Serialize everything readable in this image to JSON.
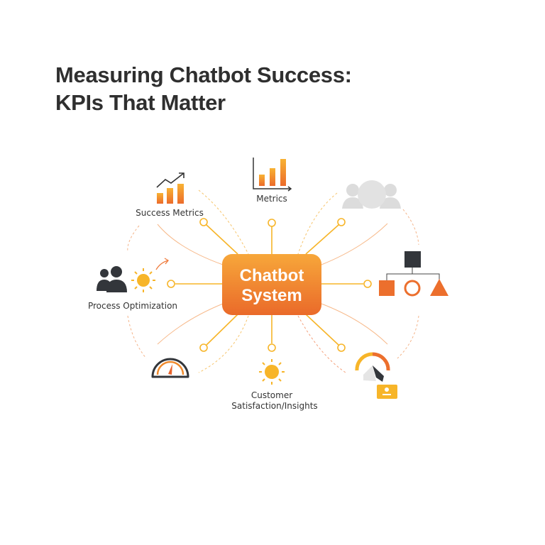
{
  "title": {
    "line1": "Measuring Chatbot Success:",
    "line2": "KPIs That Matter"
  },
  "center": {
    "line1": "Chatbot",
    "line2": "System"
  },
  "nodes": {
    "success_metrics": "Success Metrics",
    "metrics": "Metrics",
    "process_optimization": "Process Optimization",
    "customer_line1": "Customer",
    "customer_line2": "Satisfaction/Insights"
  },
  "icons": [
    "bar-chart-trend-icon",
    "bar-chart-icon",
    "users-group-icon",
    "hierarchy-shapes-icon",
    "team-sun-icon",
    "speedometer-icon",
    "sun-icon",
    "gauge-cursor-icon",
    "user-card-icon"
  ],
  "colors": {
    "accent": "#f08a2c",
    "accent_dark": "#e8622a",
    "yellow": "#f7b529",
    "dark": "#33363b",
    "gray": "#dcdcdc"
  }
}
